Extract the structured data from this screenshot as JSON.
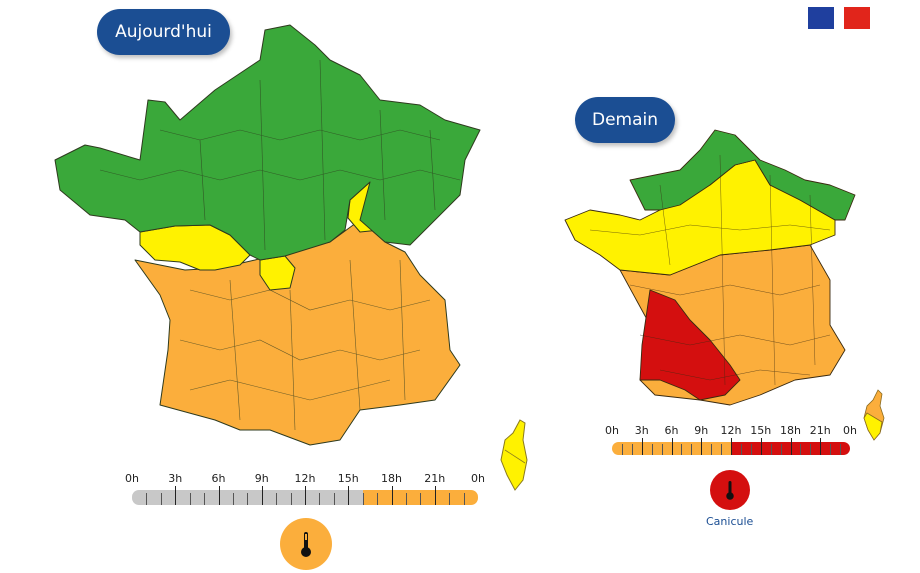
{
  "logo": {
    "icon": "marianne-flag-icon",
    "colors": [
      "#1f3f9e",
      "#ffffff",
      "#e1251b"
    ]
  },
  "legend_colors": {
    "green": "#3aa83a",
    "yellow": "#fff200",
    "orange": "#fbae3c",
    "red": "#d40f0f",
    "grey": "#c8c8c8"
  },
  "today": {
    "label": "Aujourd'hui",
    "timeline": {
      "labels": [
        "0h",
        "3h",
        "6h",
        "9h",
        "12h",
        "15h",
        "18h",
        "21h",
        "0h"
      ],
      "segments": [
        {
          "from": 0,
          "to": 16,
          "level": "grey",
          "color": "#c8c8c8"
        },
        {
          "from": 16,
          "to": 24,
          "level": "orange",
          "color": "#fbae3c"
        }
      ]
    },
    "icon": {
      "name": "thermometer-icon",
      "color": "#fbae3c"
    },
    "regions": {
      "north": "green",
      "center_band": "yellow",
      "south": "orange",
      "corsica": "yellow"
    }
  },
  "tomorrow": {
    "label": "Demain",
    "timeline": {
      "labels": [
        "0h",
        "3h",
        "6h",
        "9h",
        "12h",
        "15h",
        "18h",
        "21h",
        "0h"
      ],
      "segments": [
        {
          "from": 0,
          "to": 12,
          "level": "orange",
          "color": "#fbae3c"
        },
        {
          "from": 12,
          "to": 24,
          "level": "red",
          "color": "#d40f0f"
        }
      ]
    },
    "icon": {
      "name": "thermometer-icon",
      "color": "#d40f0f"
    },
    "caption": "Canicule",
    "regions": {
      "north": "green",
      "center_band": "yellow",
      "south": "orange",
      "southwest": "red",
      "corsica": "orange-yellow"
    }
  }
}
